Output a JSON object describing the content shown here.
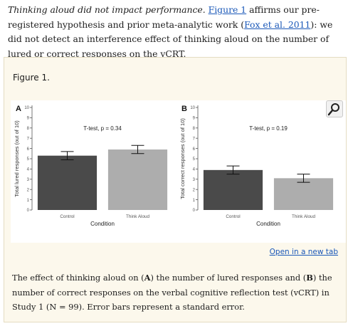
{
  "intro": {
    "emphasis": "Thinking aloud did not impact performance.",
    "t1": " ",
    "link_figure": "Figure 1",
    "t2": " affirms our pre-registered hypothesis and prior meta-analytic work (",
    "link_fox": "Fox et al. 2011",
    "t3": "): we did not detect an interference effect of thinking aloud on the number of lured or correct responses on the vCRT."
  },
  "figure": {
    "label": "Figure 1.",
    "open_new_tab": "Open in a new tab",
    "caption": {
      "c1": "The effect of thinking aloud on (",
      "a": "A",
      "c2": ") the number of lured responses and (",
      "b": "B",
      "c3": ") the number of correct responses on the verbal cognitive reflection test (vCRT) in Study 1 (N = 99). Error bars represent a standard error."
    }
  },
  "chart_data": [
    {
      "type": "bar",
      "panel_letter": "A",
      "annotation": "T-test, p = 0.34",
      "categories": [
        "Control",
        "Think Aloud"
      ],
      "values": [
        5.3,
        5.9
      ],
      "errors": [
        0.4,
        0.4
      ],
      "xlabel": "Condition",
      "ylabel": "Total lured responses (out of 10)",
      "ylim": [
        0,
        10
      ],
      "yticks": [
        0,
        1,
        2,
        3,
        4,
        5,
        6,
        7,
        8,
        9,
        10
      ],
      "colors": [
        "#4a4a4a",
        "#adadad"
      ]
    },
    {
      "type": "bar",
      "panel_letter": "B",
      "annotation": "T-test, p = 0.19",
      "categories": [
        "Control",
        "Think Aloud"
      ],
      "values": [
        3.9,
        3.1
      ],
      "errors": [
        0.4,
        0.4
      ],
      "xlabel": "Condition",
      "ylabel": "Total correct responses (out of 10)",
      "ylim": [
        0,
        10
      ],
      "yticks": [
        0,
        1,
        2,
        3,
        4,
        5,
        6,
        7,
        8,
        9,
        10
      ],
      "colors": [
        "#4a4a4a",
        "#adadad"
      ]
    }
  ]
}
